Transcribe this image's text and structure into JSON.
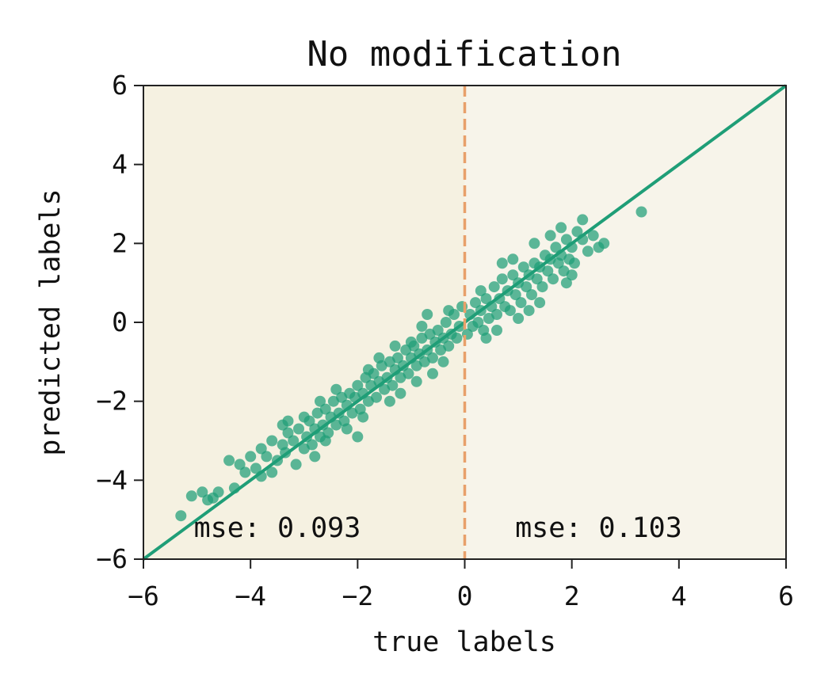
{
  "chart_data": {
    "type": "scatter",
    "title": "No modification",
    "xlabel": "true labels",
    "ylabel": "predicted labels",
    "xlim": [
      -6,
      6
    ],
    "ylim": [
      -6,
      6
    ],
    "xticks": [
      "−6",
      "−4",
      "−2",
      "0",
      "2",
      "4",
      "6"
    ],
    "yticks": [
      "6",
      "4",
      "2",
      "0",
      "−2",
      "−4",
      "−6"
    ],
    "grid": false,
    "colors": {
      "points": "#1f9e77",
      "identity_line": "#1f9e77",
      "divider": "#e8a06a",
      "background_left": "#f5f1e1",
      "background_right": "#f7f4ea"
    },
    "reference_lines": [
      {
        "kind": "identity",
        "from": [
          -6,
          -6
        ],
        "to": [
          6,
          6
        ]
      },
      {
        "kind": "vertical",
        "x": 0,
        "style": "dashed"
      }
    ],
    "annotations": [
      {
        "text": "mse: 0.093",
        "x": -3.5,
        "y": -5.2
      },
      {
        "text": "mse: 0.103",
        "x": 2.5,
        "y": -5.2
      }
    ],
    "series": [
      {
        "points": [
          [
            -5.3,
            -4.9
          ],
          [
            -5.1,
            -4.4
          ],
          [
            -4.9,
            -4.3
          ],
          [
            -4.8,
            -4.5
          ],
          [
            -4.7,
            -4.45
          ],
          [
            -4.6,
            -4.3
          ],
          [
            -4.4,
            -3.5
          ],
          [
            -4.2,
            -3.6
          ],
          [
            -4.1,
            -3.8
          ],
          [
            -4.0,
            -3.4
          ],
          [
            -3.9,
            -3.7
          ],
          [
            -3.8,
            -3.2
          ],
          [
            -3.7,
            -3.4
          ],
          [
            -3.6,
            -3.0
          ],
          [
            -3.5,
            -3.5
          ],
          [
            -3.4,
            -3.1
          ],
          [
            -3.35,
            -3.3
          ],
          [
            -3.3,
            -2.8
          ],
          [
            -3.2,
            -3.0
          ],
          [
            -3.15,
            -3.6
          ],
          [
            -3.1,
            -2.7
          ],
          [
            -3.0,
            -3.2
          ],
          [
            -2.95,
            -2.9
          ],
          [
            -2.9,
            -2.5
          ],
          [
            -2.85,
            -3.1
          ],
          [
            -2.8,
            -2.7
          ],
          [
            -2.75,
            -2.3
          ],
          [
            -2.7,
            -2.9
          ],
          [
            -2.65,
            -2.6
          ],
          [
            -2.6,
            -2.2
          ],
          [
            -2.55,
            -2.8
          ],
          [
            -2.5,
            -2.4
          ],
          [
            -2.45,
            -2.0
          ],
          [
            -2.4,
            -2.6
          ],
          [
            -2.35,
            -2.3
          ],
          [
            -2.3,
            -1.9
          ],
          [
            -2.25,
            -2.5
          ],
          [
            -2.2,
            -2.1
          ],
          [
            -2.15,
            -1.8
          ],
          [
            -2.1,
            -2.3
          ],
          [
            -2.05,
            -1.9
          ],
          [
            -2.0,
            -1.6
          ],
          [
            -1.95,
            -2.2
          ],
          [
            -1.9,
            -1.8
          ],
          [
            -1.85,
            -1.4
          ],
          [
            -1.8,
            -2.0
          ],
          [
            -1.75,
            -1.6
          ],
          [
            -1.7,
            -1.3
          ],
          [
            -1.65,
            -1.9
          ],
          [
            -1.6,
            -1.5
          ],
          [
            -1.55,
            -1.1
          ],
          [
            -1.5,
            -1.7
          ],
          [
            -1.45,
            -1.4
          ],
          [
            -1.4,
            -1.0
          ],
          [
            -1.35,
            -1.6
          ],
          [
            -1.3,
            -1.2
          ],
          [
            -1.25,
            -0.9
          ],
          [
            -1.2,
            -1.4
          ],
          [
            -1.15,
            -1.1
          ],
          [
            -1.1,
            -0.7
          ],
          [
            -1.05,
            -1.3
          ],
          [
            -1.0,
            -0.9
          ],
          [
            -0.95,
            -0.6
          ],
          [
            -0.9,
            -1.1
          ],
          [
            -0.85,
            -0.8
          ],
          [
            -0.8,
            -0.4
          ],
          [
            -0.75,
            -1.0
          ],
          [
            -0.7,
            -0.7
          ],
          [
            -0.65,
            -0.3
          ],
          [
            -0.6,
            -0.9
          ],
          [
            -0.55,
            -0.5
          ],
          [
            -0.5,
            -0.2
          ],
          [
            -0.45,
            -0.7
          ],
          [
            -0.4,
            -0.4
          ],
          [
            -0.35,
            0.0
          ],
          [
            -0.3,
            -0.6
          ],
          [
            -0.25,
            -0.3
          ],
          [
            -0.2,
            0.2
          ],
          [
            -0.15,
            -0.4
          ],
          [
            -0.1,
            -0.1
          ],
          [
            -0.05,
            0.4
          ],
          [
            -3.0,
            -2.4
          ],
          [
            -2.6,
            -3.0
          ],
          [
            -2.2,
            -2.7
          ],
          [
            -1.8,
            -1.2
          ],
          [
            -1.4,
            -2.0
          ],
          [
            -1.0,
            -0.5
          ],
          [
            -0.6,
            -1.3
          ],
          [
            -2.8,
            -3.4
          ],
          [
            -3.3,
            -2.5
          ],
          [
            -2.0,
            -2.9
          ],
          [
            -1.6,
            -0.9
          ],
          [
            -1.2,
            -1.8
          ],
          [
            -0.8,
            -0.1
          ],
          [
            -0.4,
            -1.0
          ],
          [
            -3.8,
            -3.9
          ],
          [
            -4.3,
            -4.2
          ],
          [
            -3.6,
            -3.8
          ],
          [
            -2.4,
            -1.7
          ],
          [
            -1.9,
            -2.4
          ],
          [
            -0.9,
            -1.5
          ],
          [
            -0.3,
            0.3
          ],
          [
            -1.3,
            -0.6
          ],
          [
            -2.7,
            -2.0
          ],
          [
            -3.4,
            -2.6
          ],
          [
            -0.7,
            0.2
          ],
          [
            0.05,
            -0.3
          ],
          [
            0.1,
            0.2
          ],
          [
            0.15,
            -0.1
          ],
          [
            0.2,
            0.5
          ],
          [
            0.25,
            0.0
          ],
          [
            0.3,
            0.3
          ],
          [
            0.35,
            -0.2
          ],
          [
            0.4,
            0.6
          ],
          [
            0.45,
            0.1
          ],
          [
            0.5,
            0.4
          ],
          [
            0.55,
            0.9
          ],
          [
            0.6,
            0.2
          ],
          [
            0.65,
            0.6
          ],
          [
            0.7,
            1.1
          ],
          [
            0.75,
            0.4
          ],
          [
            0.8,
            0.8
          ],
          [
            0.85,
            0.3
          ],
          [
            0.9,
            1.2
          ],
          [
            0.95,
            0.7
          ],
          [
            1.0,
            1.0
          ],
          [
            1.05,
            0.5
          ],
          [
            1.1,
            1.4
          ],
          [
            1.15,
            0.9
          ],
          [
            1.2,
            1.2
          ],
          [
            1.25,
            0.7
          ],
          [
            1.3,
            1.5
          ],
          [
            1.35,
            1.1
          ],
          [
            1.4,
            1.4
          ],
          [
            1.45,
            0.9
          ],
          [
            1.5,
            1.7
          ],
          [
            1.55,
            1.3
          ],
          [
            1.6,
            1.6
          ],
          [
            1.65,
            1.1
          ],
          [
            1.7,
            1.9
          ],
          [
            1.75,
            1.5
          ],
          [
            1.8,
            1.7
          ],
          [
            1.85,
            1.3
          ],
          [
            1.9,
            2.1
          ],
          [
            1.95,
            1.6
          ],
          [
            2.0,
            1.9
          ],
          [
            2.05,
            1.5
          ],
          [
            2.1,
            2.3
          ],
          [
            2.2,
            2.1
          ],
          [
            2.3,
            1.8
          ],
          [
            2.4,
            2.2
          ],
          [
            2.5,
            1.9
          ],
          [
            2.6,
            2.0
          ],
          [
            2.2,
            2.6
          ],
          [
            3.3,
            2.8
          ],
          [
            1.2,
            0.3
          ],
          [
            0.6,
            -0.2
          ],
          [
            1.8,
            2.4
          ],
          [
            2.0,
            1.2
          ],
          [
            0.4,
            -0.4
          ],
          [
            0.9,
            1.6
          ],
          [
            1.4,
            0.5
          ],
          [
            0.3,
            0.8
          ],
          [
            1.6,
            2.2
          ],
          [
            1.0,
            0.1
          ],
          [
            1.9,
            1.0
          ],
          [
            0.7,
            1.5
          ],
          [
            1.3,
            2.0
          ]
        ]
      }
    ]
  }
}
